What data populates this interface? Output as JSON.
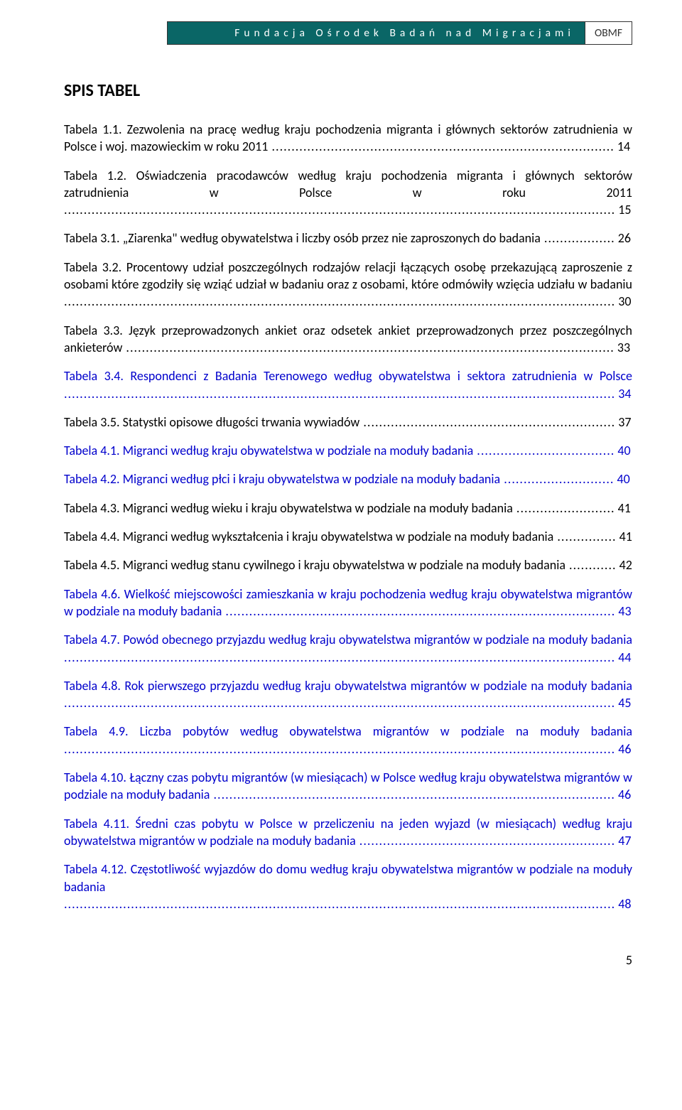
{
  "header": {
    "org_name": "Fundacja Ośrodek Badań nad Migracjami",
    "org_abbrev": "OBMF",
    "bg_color": "#0a6666",
    "text_color": "#ffffff"
  },
  "title": "SPIS TABEL",
  "entries": [
    {
      "text": "Tabela 1.1. Zezwolenia na pracę według kraju pochodzenia migranta i głównych sektorów zatrudnienia w Polsce i woj. mazowieckim w roku 2011",
      "page": "14",
      "linked": false
    },
    {
      "text": "Tabela 1.2. Oświadczenia pracodawców według kraju pochodzenia migranta i głównych sektorów zatrudnienia w Polsce w roku 2011",
      "page": "15",
      "linked": false
    },
    {
      "text": "Tabela 3.1. „Ziarenka\" według obywatelstwa i liczby osób przez nie zaproszonych do badania",
      "page": "26",
      "linked": false
    },
    {
      "text": "Tabela 3.2. Procentowy udział poszczególnych rodzajów relacji łączących osobę przekazującą zaproszenie z osobami które zgodziły się wziąć udział w badaniu oraz z osobami, które odmówiły wzięcia udziału w badaniu",
      "page": "30",
      "linked": false
    },
    {
      "text": "Tabela 3.3. Język przeprowadzonych ankiet oraz odsetek ankiet przeprowadzonych przez poszczególnych ankieterów",
      "page": "33",
      "linked": false
    },
    {
      "text": "Tabela 3.4. Respondenci z Badania Terenowego według obywatelstwa i sektora zatrudnienia w Polsce",
      "page": "34",
      "linked": true
    },
    {
      "text": "Tabela 3.5. Statystki opisowe długości trwania wywiadów",
      "page": "37",
      "linked": false
    },
    {
      "text": "Tabela 4.1. Migranci według kraju obywatelstwa w podziale na moduły badania",
      "page": "40",
      "linked": true
    },
    {
      "text": "Tabela 4.2. Migranci według płci i kraju obywatelstwa w podziale na moduły badania",
      "page": "40",
      "linked": true
    },
    {
      "text": "Tabela 4.3. Migranci według wieku i kraju obywatelstwa w podziale na moduły badania",
      "page": "41",
      "linked": false
    },
    {
      "text": "Tabela 4.4. Migranci według wykształcenia i kraju obywatelstwa w podziale na moduły badania",
      "page": "41",
      "linked": false
    },
    {
      "text": "Tabela 4.5. Migranci według stanu cywilnego i kraju obywatelstwa w podziale na moduły badania",
      "page": "42",
      "linked": false
    },
    {
      "text": "Tabela 4.6. Wielkość miejscowości zamieszkania w kraju pochodzenia według kraju obywatelstwa migrantów w podziale na moduły badania",
      "page": "43",
      "linked": true
    },
    {
      "text": "Tabela 4.7. Powód obecnego przyjazdu według kraju obywatelstwa migrantów w podziale na moduły badania",
      "page": "44",
      "linked": true
    },
    {
      "text": "Tabela 4.8. Rok pierwszego przyjazdu według kraju obywatelstwa migrantów w podziale na moduły badania",
      "page": "45",
      "linked": true
    },
    {
      "text": "Tabela 4.9. Liczba pobytów według obywatelstwa migrantów w podziale na moduły badania",
      "page": "46",
      "linked": true
    },
    {
      "text": "Tabela 4.10. Łączny czas pobytu migrantów (w miesiącach) w Polsce według kraju obywatelstwa migrantów w podziale na moduły badania",
      "page": "46",
      "linked": true
    },
    {
      "text": "Tabela 4.11. Średni czas pobytu w Polsce w przeliczeniu na jeden wyjazd (w miesiącach) według kraju obywatelstwa migrantów w podziale na moduły badania",
      "page": "47",
      "linked": true
    },
    {
      "text": "Tabela 4.12. Częstotliwość wyjazdów do domu według kraju obywatelstwa migrantów w podziale na moduły badania",
      "page": "48",
      "linked": true
    }
  ],
  "page_number": "5"
}
